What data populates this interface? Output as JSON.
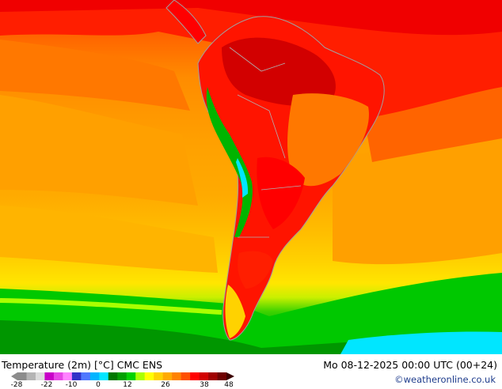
{
  "map": {
    "title": "Temperature (2m) [°C] CMC ENS",
    "valid_time": "Mo 08-12-2025 00:00 UTC (00+24)",
    "credit": "©weatheronline.co.uk"
  },
  "legend": {
    "ticks": [
      "-28",
      "-22",
      "-10",
      "0",
      "12",
      "26",
      "38",
      "48"
    ],
    "colors": [
      "#8c8c8c",
      "#b4b4b4",
      "#dcdcdc",
      "#c800c8",
      "#e646e6",
      "#ff82ff",
      "#3232c8",
      "#5078ff",
      "#00b4ff",
      "#00e6ff",
      "#007800",
      "#00a000",
      "#00d200",
      "#aaff00",
      "#ffff00",
      "#ffd200",
      "#ffaa00",
      "#ff8200",
      "#ff5000",
      "#ff0000",
      "#d20000",
      "#a00000",
      "#6e0000"
    ]
  }
}
